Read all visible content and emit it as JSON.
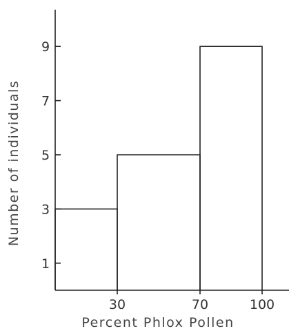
{
  "chart_data": {
    "type": "bar",
    "title": "",
    "xlabel": "Percent Phlox Pollen",
    "ylabel": "Number of individuals",
    "bins": [
      {
        "x0": 0,
        "x1": 30,
        "value": 3
      },
      {
        "x0": 30,
        "x1": 70,
        "value": 5
      },
      {
        "x0": 70,
        "x1": 100,
        "value": 9
      }
    ],
    "x_ticks": [
      {
        "value": 30,
        "label": "30"
      },
      {
        "value": 70,
        "label": "70"
      },
      {
        "value": 100,
        "label": "100"
      }
    ],
    "y_ticks": [
      {
        "value": 1,
        "label": "1"
      },
      {
        "value": 3,
        "label": "3"
      },
      {
        "value": 5,
        "label": "5"
      },
      {
        "value": 7,
        "label": "7"
      },
      {
        "value": 9,
        "label": "9"
      }
    ],
    "xlim": [
      0,
      100
    ],
    "ylim": [
      0,
      11
    ],
    "grid": false,
    "legend": "none"
  }
}
